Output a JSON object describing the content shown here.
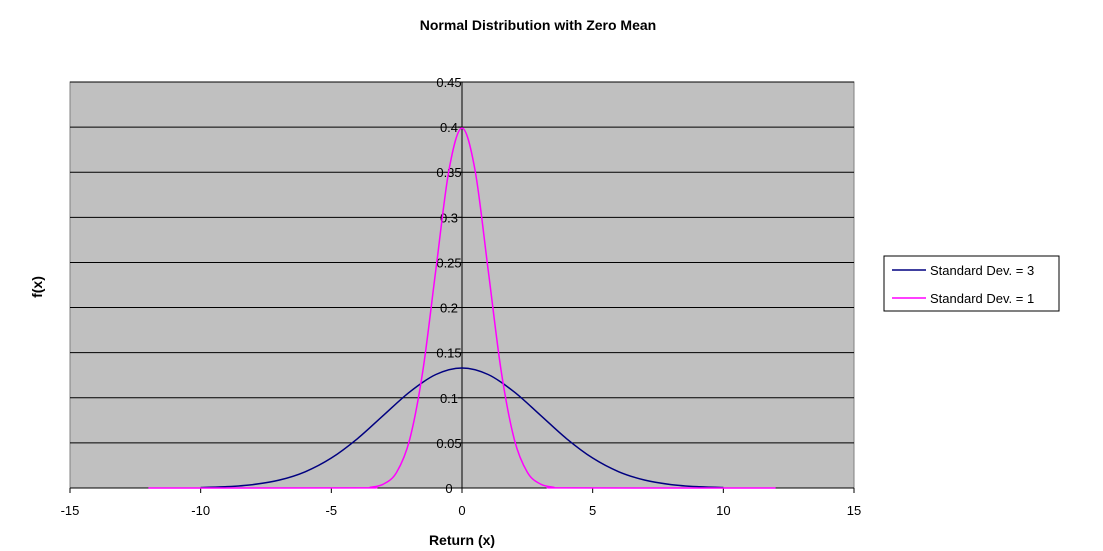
{
  "chart_data": {
    "type": "line",
    "title": "Normal Distribution with Zero Mean",
    "xlabel": "Return (x)",
    "ylabel": "f(x)",
    "xlim": [
      -15,
      15
    ],
    "ylim": [
      0,
      0.45
    ],
    "x_ticks": [
      "-15",
      "-10",
      "-5",
      "0",
      "5",
      "10",
      "15"
    ],
    "y_ticks": [
      "0",
      "0.05",
      "0.1",
      "0.15",
      "0.2",
      "0.25",
      "0.3",
      "0.35",
      "0.4",
      "0.45"
    ],
    "grid": true,
    "legend_position": "right",
    "plot_background": "#c0c0c0",
    "series": [
      {
        "name": "Standard Dev. = 3",
        "color": "#000080",
        "x": [
          -10,
          -9,
          -8,
          -7,
          -6,
          -5,
          -4,
          -3,
          -2,
          -1,
          0,
          1,
          2,
          3,
          4,
          5,
          6,
          7,
          8,
          9,
          10
        ],
        "values": [
          0.0005,
          0.0015,
          0.0038,
          0.0087,
          0.018,
          0.0332,
          0.0547,
          0.0807,
          0.1065,
          0.1258,
          0.133,
          0.1258,
          0.1065,
          0.0807,
          0.0547,
          0.0332,
          0.018,
          0.0087,
          0.0038,
          0.0015,
          0.0005
        ]
      },
      {
        "name": "Standard Dev. = 1",
        "color": "#ff00ff",
        "x": [
          -12,
          -4,
          -3.5,
          -3,
          -2.5,
          -2,
          -1.5,
          -1,
          -0.5,
          0,
          0.5,
          1,
          1.5,
          2,
          2.5,
          3,
          3.5,
          4,
          12
        ],
        "values": [
          0,
          0.0001,
          0.0009,
          0.0044,
          0.0175,
          0.054,
          0.1295,
          0.242,
          0.3521,
          0.3989,
          0.3521,
          0.242,
          0.1295,
          0.054,
          0.0175,
          0.0044,
          0.0009,
          0.0001,
          0
        ]
      }
    ]
  }
}
